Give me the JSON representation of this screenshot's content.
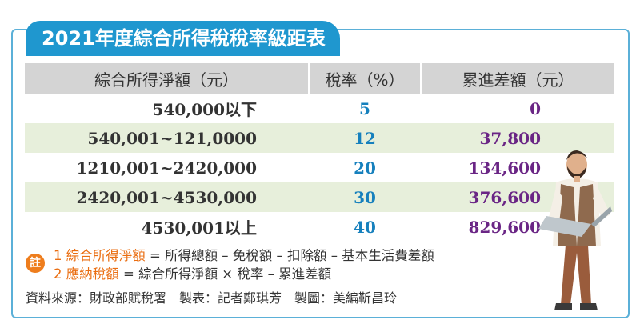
{
  "title": "2021年度綜合所得稅稅率級距表",
  "table": {
    "headers": [
      "綜合所得淨額（元）",
      "稅率（%）",
      "累進差額（元）"
    ],
    "rows": [
      {
        "income": "540,000以下",
        "rate": "5",
        "diff": "0"
      },
      {
        "income": "540,001~121,0000",
        "rate": "12",
        "diff": "37,800"
      },
      {
        "income": "1210,001~2420,000",
        "rate": "20",
        "diff": "134,600"
      },
      {
        "income": "2420,001~4530,000",
        "rate": "30",
        "diff": "376,600"
      },
      {
        "income": "4530,001以上",
        "rate": "40",
        "diff": "829,600"
      }
    ]
  },
  "notes": {
    "badge": "註",
    "items": [
      {
        "num": "1",
        "term": "綜合所得淨額",
        "formula": " = 所得總額 – 免稅額 – 扣除額 – 基本生活費差額"
      },
      {
        "num": "2",
        "term": "應納稅額",
        "formula": " = 綜合所得淨額 × 稅率 – 累進差額"
      }
    ]
  },
  "credit": "資料來源：財政部賦稅署　製表：記者鄭琪芳　製圖：美編靳昌玲",
  "colors": {
    "title_bg": "#1f97cf",
    "header_bg": "#d4d4d4",
    "row_shade": "#e7efdb",
    "rate_text": "#1680bd",
    "diff_text": "#6a2585",
    "note_accent": "#ea6d10"
  },
  "illustration": "man-with-laptop"
}
